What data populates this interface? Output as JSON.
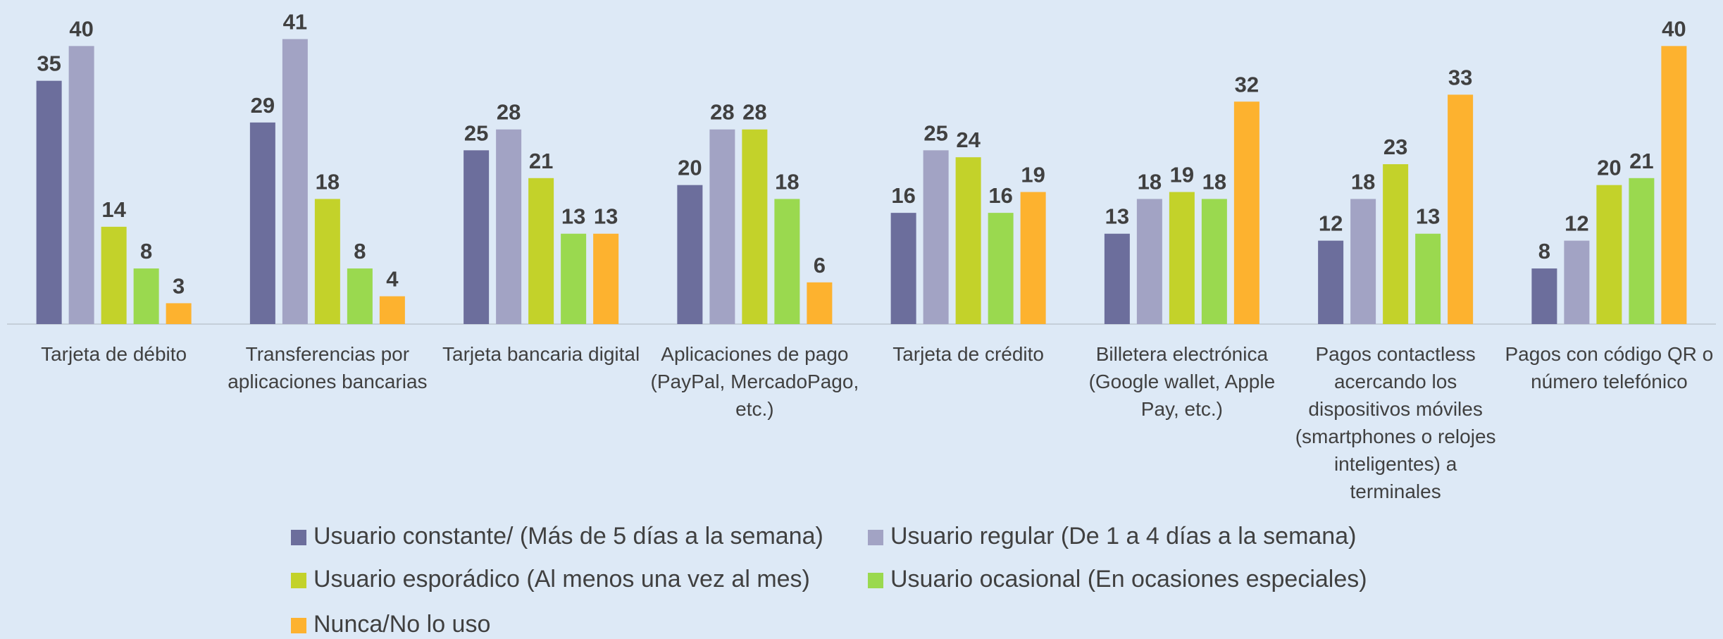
{
  "chart_data": {
    "type": "bar",
    "categories": [
      "Tarjeta de débito",
      "Transferencias por aplicaciones bancarias",
      "Tarjeta bancaria digital",
      "Aplicaciones de pago (PayPal, MercadoPago, etc.)",
      "Tarjeta de crédito",
      "Billetera electrónica (Google wallet, Apple Pay, etc.)",
      "Pagos contactless acercando los dispositivos móviles (smartphones o relojes inteligentes) a terminales",
      "Pagos con código QR o número telefónico"
    ],
    "series": [
      {
        "name": "Usuario constante/ (Más de 5 días a la semana)",
        "color": "#6c6e9c",
        "values": [
          35,
          29,
          25,
          20,
          16,
          13,
          12,
          8
        ]
      },
      {
        "name": "Usuario regular (De 1 a 4 días a la semana)",
        "color": "#a2a3c4",
        "values": [
          40,
          41,
          28,
          28,
          25,
          18,
          18,
          12
        ]
      },
      {
        "name": "Usuario esporádico (Al menos una vez al mes)",
        "color": "#c3d22a",
        "values": [
          14,
          18,
          21,
          28,
          24,
          19,
          23,
          20
        ]
      },
      {
        "name": "Usuario ocasional (En ocasiones especiales)",
        "color": "#9ad94f",
        "values": [
          8,
          8,
          13,
          18,
          16,
          18,
          13,
          21
        ]
      },
      {
        "name": "Nunca/No lo uso",
        "color": "#fdb22f",
        "values": [
          3,
          4,
          13,
          6,
          19,
          32,
          33,
          40
        ]
      }
    ],
    "ylim": [
      0,
      45
    ],
    "grid": false
  }
}
